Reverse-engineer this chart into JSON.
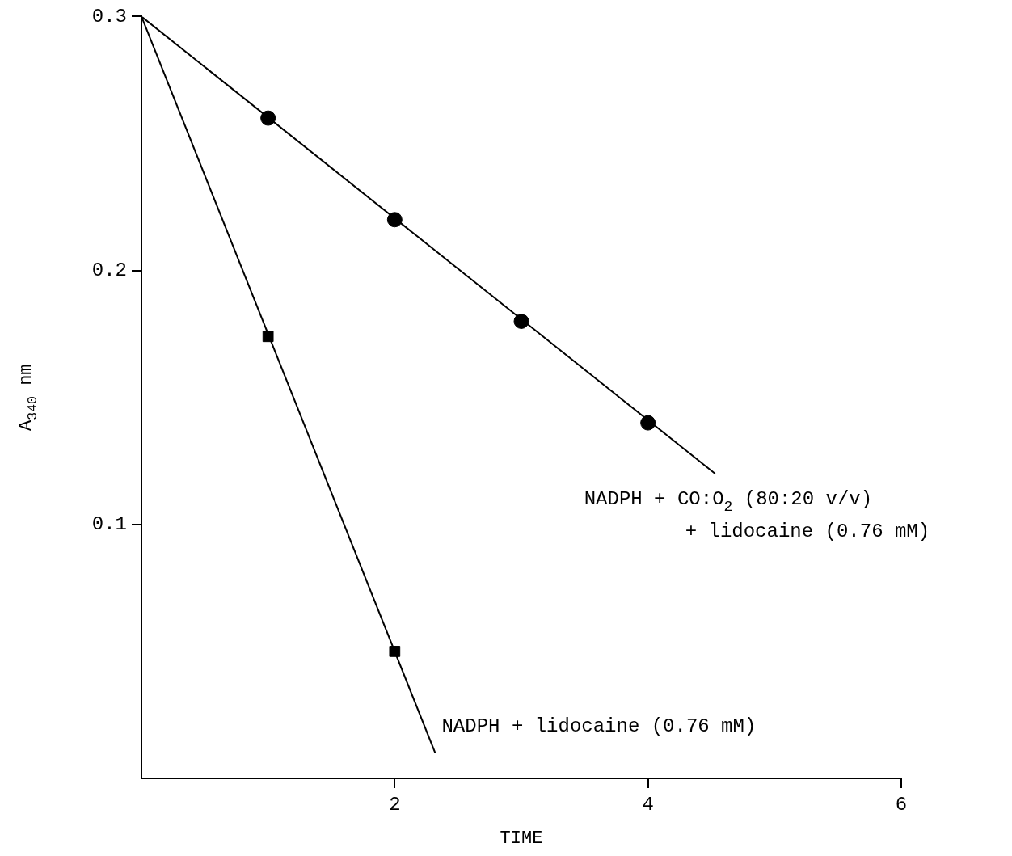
{
  "chart_data": {
    "type": "scatter",
    "xlabel": "TIME",
    "ylabel": "A$_{340}$ nm",
    "xlim": [
      0,
      6
    ],
    "ylim": [
      0,
      0.3
    ],
    "xticks": [
      2,
      4,
      6
    ],
    "yticks": [
      0.1,
      0.2,
      0.3
    ],
    "grid": false,
    "legend": false,
    "series": [
      {
        "type": "line",
        "name": "NADPH + CO:O$_{2}$ (80:20 v/v)\n+ lidocaine (0.76 mM)",
        "color": "#000000",
        "marker": "none",
        "x": [
          0,
          4.53
        ],
        "values": [
          0.3,
          0.12
        ]
      },
      {
        "color": "#000000",
        "marker": "circle",
        "x": [
          1,
          2,
          3,
          4
        ],
        "values": [
          0.26,
          0.22,
          0.18,
          0.14
        ]
      },
      {
        "type": "line",
        "name": "NADPH + lidocaine (0.76 mM)",
        "color": "#000000",
        "marker": "none",
        "x": [
          0,
          2.32
        ],
        "values": [
          0.3,
          0.01
        ]
      },
      {
        "color": "#000000",
        "marker": "square",
        "x": [
          1,
          2
        ],
        "values": [
          0.174,
          0.05
        ]
      }
    ]
  }
}
